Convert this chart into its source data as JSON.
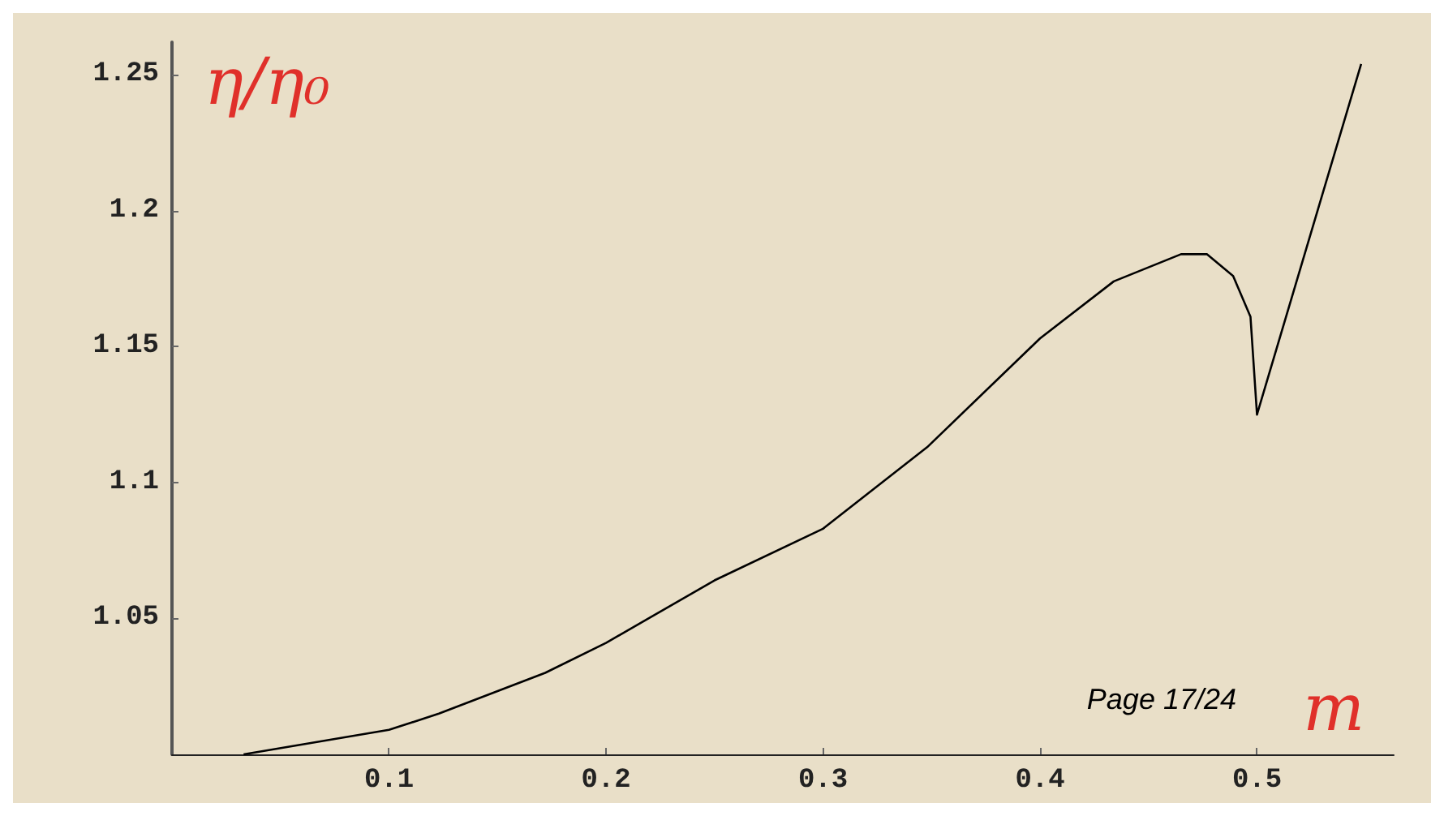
{
  "chart_data": {
    "type": "line",
    "xlabel": "m",
    "ylabel": "η/η₀",
    "annotations": [
      "Page 17/24"
    ],
    "x": [
      0.033,
      0.1,
      0.123,
      0.172,
      0.2,
      0.25,
      0.3,
      0.348,
      0.4,
      0.434,
      0.465,
      0.477,
      0.489,
      0.497,
      0.5,
      0.548
    ],
    "series": [
      {
        "color": "#000000",
        "values": [
          1.0,
          1.009,
          1.015,
          1.03,
          1.041,
          1.064,
          1.083,
          1.113,
          1.153,
          1.174,
          1.184,
          1.184,
          1.176,
          1.161,
          1.125,
          1.254
        ]
      }
    ],
    "xlim": [
      0,
      0.563
    ],
    "ylim": [
      1.0,
      1.262
    ],
    "xticks": [
      0.1,
      0.2,
      0.3,
      0.4,
      0.5
    ],
    "yticks": [
      1.05,
      1.1,
      1.15,
      1.2,
      1.25
    ],
    "grid": false,
    "marker": "none",
    "line_style": "solid"
  }
}
